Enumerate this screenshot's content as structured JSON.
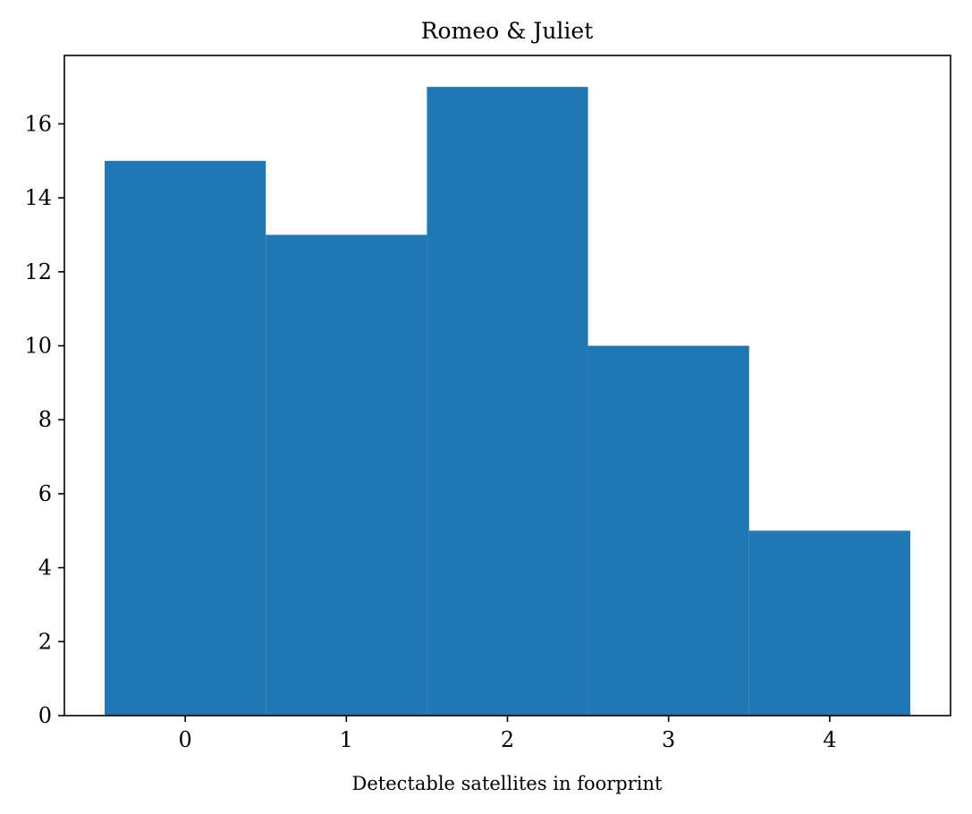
{
  "chart_data": {
    "type": "bar",
    "title": "Romeo & Juliet",
    "xlabel": "Detectable satellites in foorprint",
    "ylabel": "",
    "categories": [
      "0",
      "1",
      "2",
      "3",
      "4"
    ],
    "x": [
      0,
      1,
      2,
      3,
      4
    ],
    "values": [
      15,
      13,
      17,
      10,
      5
    ],
    "bar_width": 1,
    "xlim": [
      -0.75,
      4.75
    ],
    "ylim": [
      0,
      17.85
    ],
    "xticks": [
      0,
      1,
      2,
      3,
      4
    ],
    "yticks": [
      0,
      2,
      4,
      6,
      8,
      10,
      12,
      14,
      16
    ],
    "bar_color": "#1f77b4",
    "grid": false,
    "legend": "none"
  }
}
